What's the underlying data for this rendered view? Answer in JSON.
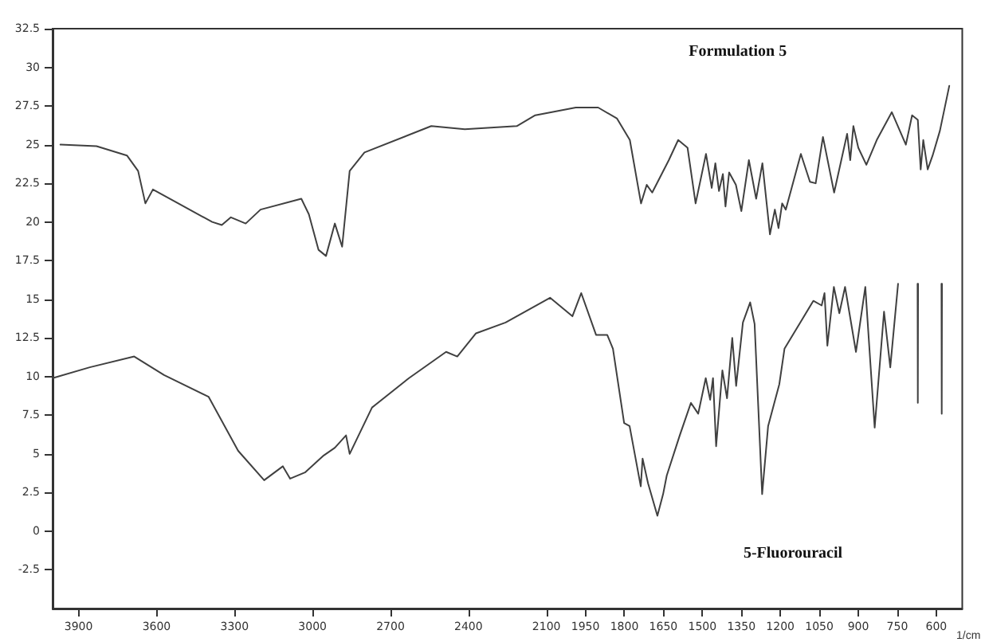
{
  "chart_data": {
    "type": "line",
    "xlabel": "1/cm",
    "xlim": [
      4000,
      500
    ],
    "xticks": [
      3900,
      3600,
      3300,
      3000,
      2700,
      2400,
      2100,
      1950,
      1800,
      1650,
      1500,
      1350,
      1200,
      1050,
      900,
      750,
      600
    ],
    "ylim": [
      -5,
      32.5
    ],
    "yticks": [
      -2.5,
      0,
      2.5,
      5,
      7.5,
      10,
      12.5,
      15,
      17.5,
      20,
      22.5,
      25,
      27.5,
      30,
      32.5
    ],
    "grid": false,
    "marker": "none",
    "line_style": "solid",
    "annotations": [
      "Formulation 5",
      "5-Fluorouracil"
    ],
    "series": [
      {
        "color": "#404040",
        "x": [
          3970,
          3831,
          3714,
          3671,
          3643,
          3614,
          3386,
          3349,
          3314,
          3257,
          3200,
          3043,
          3014,
          2977,
          2948,
          2914,
          2886,
          2857,
          2800,
          2543,
          2414,
          2214,
          2143,
          1987,
          1901,
          1829,
          1779,
          1736,
          1714,
          1693,
          1629,
          1593,
          1557,
          1526,
          1486,
          1464,
          1450,
          1436,
          1421,
          1411,
          1397,
          1371,
          1350,
          1321,
          1293,
          1269,
          1240,
          1221,
          1207,
          1193,
          1179,
          1121,
          1086,
          1064,
          1036,
          993,
          943,
          931,
          919,
          900,
          869,
          829,
          771,
          717,
          693,
          671,
          660,
          650,
          633,
          614,
          586,
          550
        ],
        "values": [
          25.0,
          24.9,
          24.3,
          23.3,
          21.2,
          22.1,
          20.0,
          19.8,
          20.3,
          19.9,
          20.8,
          21.5,
          20.5,
          18.2,
          17.8,
          19.9,
          18.4,
          23.3,
          24.5,
          26.2,
          26.0,
          26.2,
          26.9,
          27.4,
          27.4,
          26.7,
          25.3,
          21.2,
          22.4,
          21.9,
          24.0,
          25.3,
          24.8,
          21.2,
          24.4,
          22.2,
          23.8,
          22.0,
          23.1,
          21.0,
          23.2,
          22.4,
          20.7,
          24.0,
          21.5,
          23.8,
          19.2,
          20.8,
          19.6,
          21.2,
          20.8,
          24.4,
          22.6,
          22.5,
          25.5,
          21.9,
          25.7,
          24.0,
          26.2,
          24.8,
          23.7,
          25.3,
          27.1,
          25.0,
          26.9,
          26.6,
          23.4,
          25.3,
          23.4,
          24.3,
          25.9,
          28.8
        ]
      },
      {
        "color": "#404040",
        "x": [
          4000,
          3857,
          3686,
          3571,
          3400,
          3286,
          3186,
          3114,
          3086,
          3029,
          2957,
          2914,
          2871,
          2857,
          2771,
          2629,
          2486,
          2443,
          2371,
          2257,
          2086,
          2000,
          1966,
          1909,
          1866,
          1844,
          1801,
          1780,
          1737,
          1730,
          1709,
          1673,
          1651,
          1637,
          1587,
          1544,
          1516,
          1487,
          1470,
          1459,
          1447,
          1423,
          1405,
          1385,
          1370,
          1344,
          1316,
          1299,
          1270,
          1247,
          1204,
          1184,
          1116,
          1073,
          1041,
          1030,
          1019,
          994,
          973,
          951,
          909,
          873,
          837,
          801,
          777,
          747,
          700,
          672,
          671,
          670,
          620,
          580,
          579,
          578
        ],
        "values": [
          9.9,
          10.6,
          11.3,
          10.1,
          8.7,
          5.2,
          3.3,
          4.2,
          3.4,
          3.8,
          4.9,
          5.4,
          6.2,
          5.0,
          8.0,
          9.9,
          11.6,
          11.3,
          12.8,
          13.5,
          15.1,
          13.9,
          15.4,
          12.7,
          12.7,
          11.8,
          7.0,
          6.8,
          2.9,
          4.7,
          3.1,
          1.0,
          2.4,
          3.6,
          6.2,
          8.3,
          7.6,
          9.9,
          8.5,
          9.9,
          5.5,
          10.4,
          8.6,
          12.5,
          9.4,
          13.5,
          14.8,
          13.4,
          2.4,
          6.8,
          9.5,
          11.8,
          13.7,
          14.9,
          14.6,
          15.4,
          12.0,
          15.8,
          14.1,
          15.8,
          11.6,
          15.8,
          6.7,
          14.2,
          10.6,
          16.0,
          null,
          16.0,
          8.3,
          16.0,
          null,
          16.0,
          7.6,
          16.0
        ]
      }
    ]
  }
}
